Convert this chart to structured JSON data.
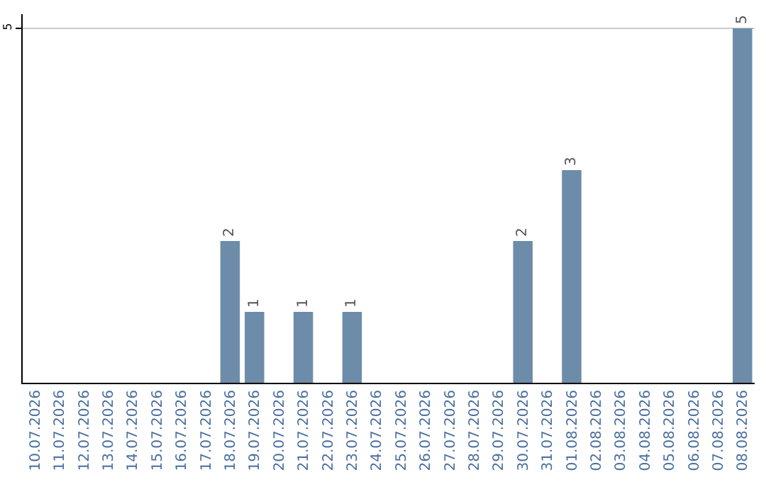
{
  "chart_data": {
    "type": "bar",
    "categories": [
      "10.07.2026",
      "11.07.2026",
      "12.07.2026",
      "13.07.2026",
      "14.07.2026",
      "15.07.2026",
      "16.07.2026",
      "17.07.2026",
      "18.07.2026",
      "19.07.2026",
      "20.07.2026",
      "21.07.2026",
      "22.07.2026",
      "23.07.2026",
      "24.07.2026",
      "25.07.2026",
      "26.07.2026",
      "27.07.2026",
      "28.07.2026",
      "29.07.2026",
      "30.07.2026",
      "31.07.2026",
      "01.08.2026",
      "02.08.2026",
      "03.08.2026",
      "04.08.2026",
      "05.08.2026",
      "06.08.2026",
      "07.08.2026",
      "08.08.2026"
    ],
    "values": [
      0,
      0,
      0,
      0,
      0,
      0,
      0,
      0,
      2,
      1,
      0,
      1,
      0,
      1,
      0,
      0,
      0,
      0,
      0,
      0,
      2,
      0,
      3,
      0,
      0,
      0,
      0,
      0,
      0,
      5
    ],
    "value_labels": [
      null,
      null,
      null,
      null,
      null,
      null,
      null,
      null,
      "2",
      "1",
      null,
      "1",
      null,
      "1",
      null,
      null,
      null,
      null,
      null,
      null,
      "2",
      null,
      "3",
      null,
      null,
      null,
      null,
      null,
      null,
      "5"
    ],
    "color": "#6d8ca9",
    "ylim": [
      0,
      5.2
    ],
    "yticks": [
      5
    ],
    "grid": "y"
  }
}
